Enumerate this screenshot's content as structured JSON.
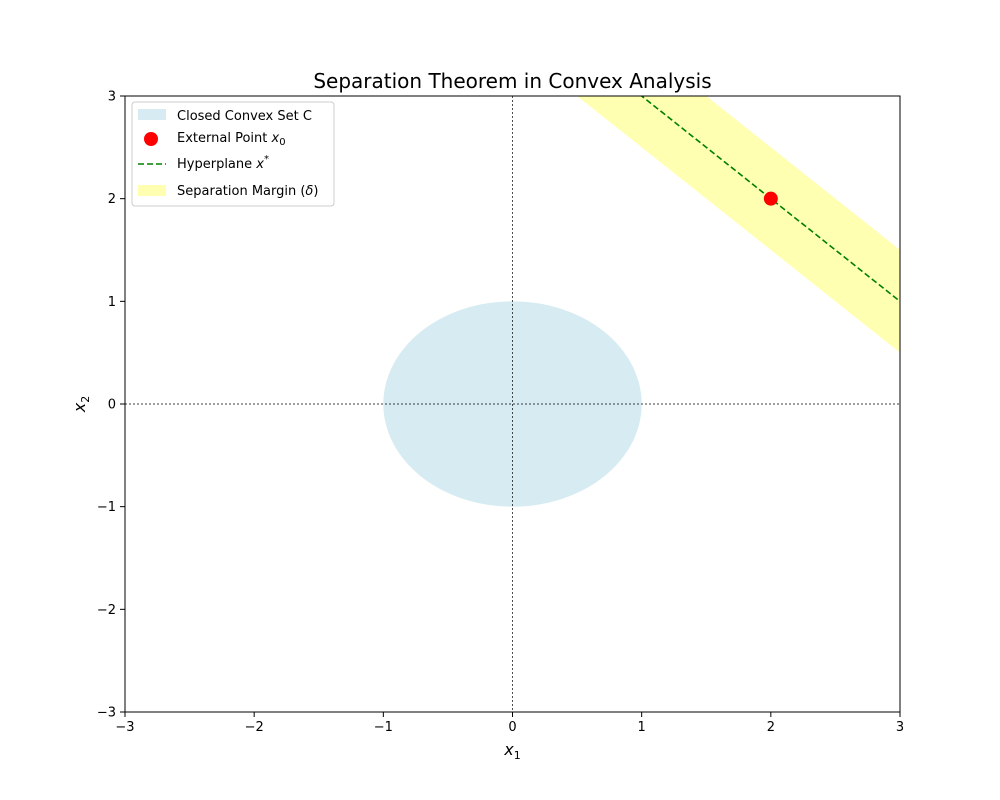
{
  "chart_data": {
    "type": "scatter",
    "title": "Separation Theorem in Convex Analysis",
    "xlabel": "x",
    "xlabel_sub": "1",
    "ylabel": "x",
    "ylabel_sub": "2",
    "xlim": [
      -3,
      3
    ],
    "ylim": [
      -3,
      3
    ],
    "xticks": [
      -3,
      -2,
      -1,
      0,
      1,
      2,
      3
    ],
    "yticks": [
      -3,
      -2,
      -1,
      0,
      1,
      2,
      3
    ],
    "xtick_labels": [
      "−3",
      "−2",
      "−1",
      "0",
      "1",
      "2",
      "3"
    ],
    "ytick_labels": [
      "−3",
      "−2",
      "−1",
      "0",
      "1",
      "2",
      "3"
    ],
    "grid": false,
    "reference_lines": {
      "x": 0,
      "y": 0,
      "style": "dotted",
      "color": "#000000"
    },
    "convex_set": {
      "name": "Closed Convex Set C",
      "shape": "disk",
      "center": [
        0,
        0
      ],
      "radius": 1,
      "color": "#add8e6",
      "opacity": 0.5
    },
    "external_point": {
      "name": "External Point",
      "name_math": "x",
      "name_sub": "0",
      "x": 2,
      "y": 2,
      "color": "#ff0000"
    },
    "hyperplane": {
      "name": "Hyperplane",
      "name_math": "x",
      "name_sup": "*",
      "slope": -1,
      "intercept": 4,
      "style": "dashed",
      "color": "#008000"
    },
    "margin_band": {
      "name": "Separation Margin (",
      "name_math": "δ",
      "name_end": ")",
      "lower_intercept": 3.5,
      "upper_intercept": 4.5,
      "color": "#ffff00",
      "opacity": 0.3
    },
    "legend_position": "top-left"
  }
}
